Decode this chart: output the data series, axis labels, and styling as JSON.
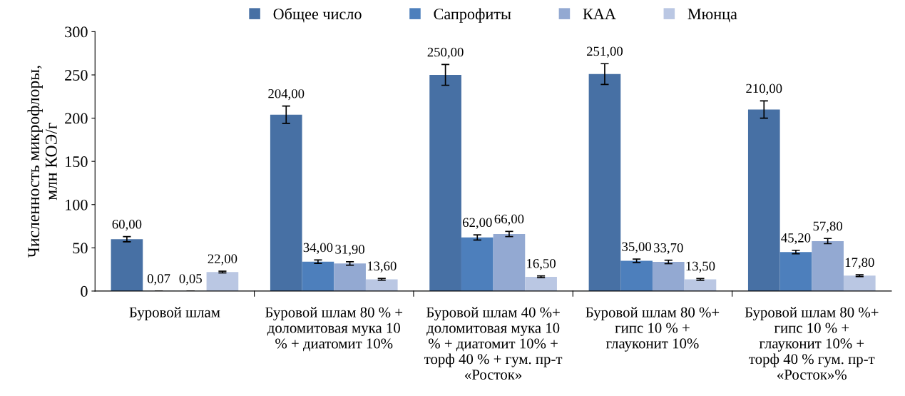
{
  "chart_data": {
    "type": "bar",
    "ylabel": "Численность микрофлоры,\nмлн КОЭ/г",
    "categories": [
      "Буровой шлам",
      "Буровой шлам 80 % +\nдоломитовая мука 10\n% + диатомит 10%",
      "Буровой шлам 40 %+\nдоломитовая мука 10\n% + диатомит 10% +\nторф 40 % + гум. пр-т\n«Росток»",
      "Буровой шлам 80 %+\nгипс 10 % +\nглауконит 10%",
      "Буровой шлам 80 %+\nгипс 10 % +\nглауконит 10% +\nторф 40 % гум. пр-т\n«Росток»%"
    ],
    "series": [
      {
        "name": "Общее число",
        "color": "#4770a4",
        "values": [
          60,
          204,
          250,
          251,
          210
        ],
        "errors": [
          3,
          10,
          12,
          12,
          10
        ],
        "value_labels": [
          "60,00",
          "204,00",
          "250,00",
          "251,00",
          "210,00"
        ]
      },
      {
        "name": "Сапрофиты",
        "color": "#4d7fbc",
        "values": [
          0.07,
          34,
          62,
          35,
          45.2
        ],
        "errors": [
          null,
          2,
          3,
          2,
          2
        ],
        "value_labels": [
          "0,07",
          "34,00",
          "62,00",
          "35,00",
          "45,20"
        ]
      },
      {
        "name": "КАА",
        "color": "#93a9d2",
        "values": [
          0.05,
          31.9,
          66,
          33.7,
          57.8
        ],
        "errors": [
          null,
          2,
          3,
          2,
          3
        ],
        "value_labels": [
          "0,05",
          "31,90",
          "66,00",
          "33,70",
          "57,80"
        ]
      },
      {
        "name": "Мюнца",
        "color": "#bac7e3",
        "values": [
          22,
          13.6,
          16.5,
          13.5,
          17.8
        ],
        "errors": [
          1,
          1,
          1,
          1,
          1
        ],
        "value_labels": [
          "22,00",
          "13,60",
          "16,50",
          "13,50",
          "17,80"
        ]
      }
    ],
    "ylim": [
      0,
      300
    ],
    "yticks": [
      0,
      50,
      100,
      150,
      200,
      250,
      300
    ],
    "grid": false,
    "legend": "top"
  }
}
